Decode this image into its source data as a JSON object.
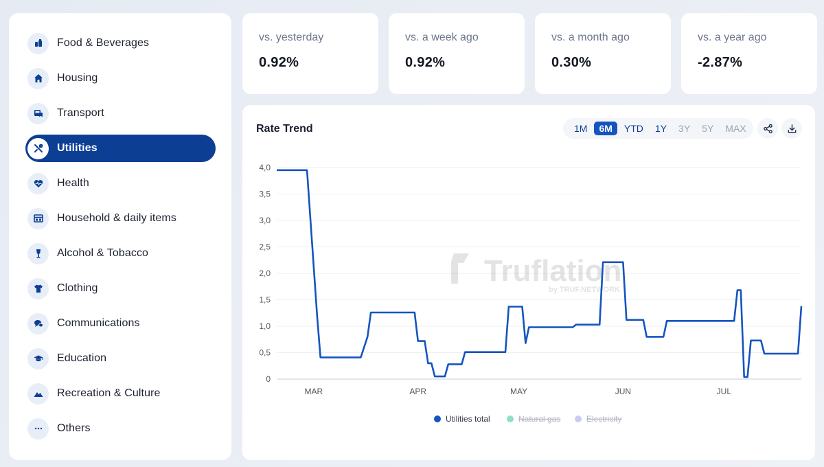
{
  "sidebar": {
    "items": [
      {
        "label": "Food & Beverages",
        "icon": "food-icon",
        "active": false
      },
      {
        "label": "Housing",
        "icon": "house-icon",
        "active": false
      },
      {
        "label": "Transport",
        "icon": "transport-icon",
        "active": false
      },
      {
        "label": "Utilities",
        "icon": "tools-icon",
        "active": true
      },
      {
        "label": "Health",
        "icon": "heart-pulse-icon",
        "active": false
      },
      {
        "label": "Household & daily items",
        "icon": "household-icon",
        "active": false
      },
      {
        "label": "Alcohol & Tobacco",
        "icon": "wine-glass-icon",
        "active": false
      },
      {
        "label": "Clothing",
        "icon": "tshirt-icon",
        "active": false
      },
      {
        "label": "Communications",
        "icon": "chat-icon",
        "active": false
      },
      {
        "label": "Education",
        "icon": "graduation-cap-icon",
        "active": false
      },
      {
        "label": "Recreation & Culture",
        "icon": "mountain-icon",
        "active": false
      },
      {
        "label": "Others",
        "icon": "more-icon",
        "active": false
      }
    ]
  },
  "stats": [
    {
      "label": "vs. yesterday",
      "value": "0.92%"
    },
    {
      "label": "vs. a week ago",
      "value": "0.92%"
    },
    {
      "label": "vs. a month ago",
      "value": "0.30%"
    },
    {
      "label": "vs. a year ago",
      "value": "-2.87%"
    }
  ],
  "chart_card": {
    "title": "Rate Trend",
    "ranges": [
      {
        "label": "1M",
        "state": "normal"
      },
      {
        "label": "6M",
        "state": "active"
      },
      {
        "label": "YTD",
        "state": "normal"
      },
      {
        "label": "1Y",
        "state": "normal"
      },
      {
        "label": "3Y",
        "state": "muted"
      },
      {
        "label": "5Y",
        "state": "muted"
      },
      {
        "label": "MAX",
        "state": "muted"
      }
    ],
    "share_icon": "share-icon",
    "download_icon": "download-icon",
    "watermark": {
      "name": "Truflation",
      "sub": "by TRUF.NETWORK"
    }
  },
  "colors": {
    "accent": "#0c3e94",
    "line": "#1554c0",
    "natural_gas": "#8ee0c8",
    "electricity": "#c9cdf3"
  },
  "chart_data": {
    "type": "line",
    "title": "",
    "xlabel": "",
    "ylabel": "",
    "ylim": [
      0,
      4.0
    ],
    "y_ticks": [
      "0",
      "0,5",
      "1,0",
      "1,5",
      "2,0",
      "2,5",
      "3,0",
      "3,5",
      "4,0"
    ],
    "x_ticks": [
      "MAR",
      "APR",
      "MAY",
      "JUN",
      "JUL"
    ],
    "x_range": [
      "2024-02-19",
      "2024-07-24"
    ],
    "grid": true,
    "legend_position": "bottom",
    "series": [
      {
        "name": "Utilities total",
        "visible": true,
        "points": [
          [
            "2024-02-19",
            3.95
          ],
          [
            "2024-02-28",
            3.95
          ],
          [
            "2024-03-02",
            1.2
          ],
          [
            "2024-03-03",
            0.41
          ],
          [
            "2024-03-15",
            0.41
          ],
          [
            "2024-03-17",
            0.8
          ],
          [
            "2024-03-18",
            1.26
          ],
          [
            "2024-03-31",
            1.26
          ],
          [
            "2024-04-01",
            0.72
          ],
          [
            "2024-04-03",
            0.72
          ],
          [
            "2024-04-04",
            0.3
          ],
          [
            "2024-04-05",
            0.3
          ],
          [
            "2024-04-06",
            0.05
          ],
          [
            "2024-04-09",
            0.05
          ],
          [
            "2024-04-10",
            0.28
          ],
          [
            "2024-04-14",
            0.28
          ],
          [
            "2024-04-15",
            0.51
          ],
          [
            "2024-04-27",
            0.51
          ],
          [
            "2024-04-28",
            1.37
          ],
          [
            "2024-05-02",
            1.37
          ],
          [
            "2024-05-03",
            0.68
          ],
          [
            "2024-05-04",
            0.98
          ],
          [
            "2024-05-17",
            0.98
          ],
          [
            "2024-05-18",
            1.03
          ],
          [
            "2024-05-25",
            1.03
          ],
          [
            "2024-05-26",
            2.21
          ],
          [
            "2024-06-01",
            2.21
          ],
          [
            "2024-06-02",
            1.12
          ],
          [
            "2024-06-07",
            1.12
          ],
          [
            "2024-06-08",
            0.8
          ],
          [
            "2024-06-13",
            0.8
          ],
          [
            "2024-06-14",
            1.1
          ],
          [
            "2024-07-04",
            1.1
          ],
          [
            "2024-07-05",
            1.68
          ],
          [
            "2024-07-06",
            1.68
          ],
          [
            "2024-07-07",
            0.04
          ],
          [
            "2024-07-08",
            0.04
          ],
          [
            "2024-07-09",
            0.73
          ],
          [
            "2024-07-12",
            0.73
          ],
          [
            "2024-07-13",
            0.48
          ],
          [
            "2024-07-23",
            0.48
          ],
          [
            "2024-07-24",
            1.38
          ]
        ]
      },
      {
        "name": "Natural gas",
        "visible": false,
        "points": []
      },
      {
        "name": "Electricity",
        "visible": false,
        "points": []
      }
    ]
  }
}
